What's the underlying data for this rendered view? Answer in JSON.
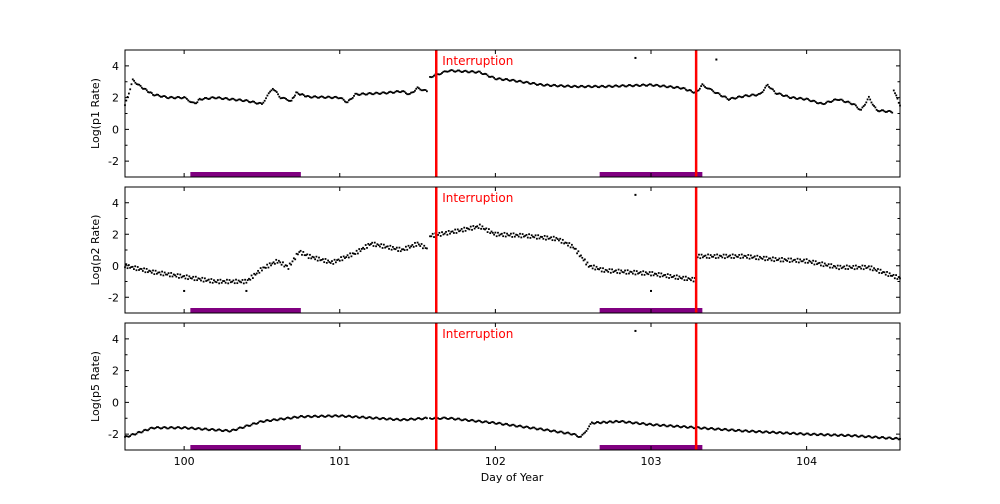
{
  "chart_data": {
    "type": "scatter",
    "xlabel": "Day of Year",
    "xlim": [
      99.62,
      104.6
    ],
    "xticks": [
      100,
      101,
      102,
      103,
      104
    ],
    "colors": {
      "points": "#000000",
      "interruption": "#ff0000",
      "band": "#800080"
    },
    "interruptions": [
      101.62,
      103.29
    ],
    "interruption_label": "Interruption",
    "bands": [
      [
        100.04,
        100.75
      ],
      [
        102.67,
        103.33
      ]
    ],
    "panels": [
      {
        "ylabel": "Log(p1 Rate)",
        "ylim": [
          -3,
          5
        ],
        "yticks": [
          -2,
          0,
          2,
          4
        ],
        "points": [
          [
            99.62,
            1.5
          ],
          [
            99.67,
            3.1
          ],
          [
            99.72,
            2.7
          ],
          [
            99.8,
            2.2
          ],
          [
            99.9,
            2.0
          ],
          [
            100.0,
            2.0
          ],
          [
            100.07,
            1.6
          ],
          [
            100.1,
            1.9
          ],
          [
            100.2,
            2.0
          ],
          [
            100.3,
            1.9
          ],
          [
            100.4,
            1.8
          ],
          [
            100.5,
            1.6
          ],
          [
            100.57,
            2.6
          ],
          [
            100.62,
            2.0
          ],
          [
            100.69,
            1.8
          ],
          [
            100.72,
            2.3
          ],
          [
            100.8,
            2.05
          ],
          [
            101.0,
            2.0
          ],
          [
            101.05,
            1.7
          ],
          [
            101.1,
            2.2
          ],
          [
            101.3,
            2.3
          ],
          [
            101.4,
            2.4
          ],
          [
            101.45,
            2.2
          ],
          [
            101.5,
            2.6
          ],
          [
            101.56,
            2.4
          ]
        ],
        "points_after": [
          [
            101.58,
            3.3
          ],
          [
            101.7,
            3.7
          ],
          [
            101.9,
            3.6
          ],
          [
            102.0,
            3.2
          ],
          [
            102.1,
            3.1
          ],
          [
            102.3,
            2.8
          ],
          [
            102.5,
            2.7
          ],
          [
            102.7,
            2.7
          ],
          [
            103.0,
            2.8
          ],
          [
            103.2,
            2.6
          ],
          [
            103.29,
            2.3
          ],
          [
            103.33,
            2.8
          ],
          [
            103.4,
            2.4
          ],
          [
            103.5,
            1.9
          ],
          [
            103.6,
            2.1
          ],
          [
            103.7,
            2.2
          ],
          [
            103.75,
            2.8
          ],
          [
            103.8,
            2.3
          ],
          [
            103.9,
            2.0
          ],
          [
            104.0,
            1.9
          ],
          [
            104.1,
            1.6
          ],
          [
            104.2,
            1.9
          ],
          [
            104.3,
            1.6
          ],
          [
            104.35,
            1.2
          ],
          [
            104.4,
            2.0
          ],
          [
            104.45,
            1.2
          ],
          [
            104.55,
            1.1
          ],
          [
            104.56,
            2.5
          ],
          [
            104.6,
            1.5
          ]
        ],
        "outliers": [
          [
            102.9,
            4.5
          ],
          [
            103.42,
            4.4
          ]
        ]
      },
      {
        "ylabel": "Log(p2 Rate)",
        "ylim": [
          -3,
          5
        ],
        "yticks": [
          -2,
          0,
          2,
          4
        ],
        "points": [
          [
            99.62,
            0.0
          ],
          [
            99.8,
            -0.4
          ],
          [
            100.0,
            -0.7
          ],
          [
            100.2,
            -1.0
          ],
          [
            100.4,
            -1.0
          ],
          [
            100.5,
            -0.2
          ],
          [
            100.6,
            0.3
          ],
          [
            100.67,
            -0.1
          ],
          [
            100.74,
            0.9
          ],
          [
            100.8,
            0.6
          ],
          [
            100.95,
            0.2
          ],
          [
            101.1,
            0.8
          ],
          [
            101.2,
            1.4
          ],
          [
            101.4,
            1.0
          ],
          [
            101.5,
            1.4
          ],
          [
            101.56,
            1.1
          ]
        ],
        "points_after": [
          [
            101.58,
            1.9
          ],
          [
            101.7,
            2.1
          ],
          [
            101.9,
            2.5
          ],
          [
            102.0,
            2.0
          ],
          [
            102.2,
            1.9
          ],
          [
            102.4,
            1.7
          ],
          [
            102.5,
            1.2
          ],
          [
            102.6,
            0.0
          ],
          [
            102.7,
            -0.3
          ],
          [
            103.0,
            -0.5
          ],
          [
            103.29,
            -0.9
          ],
          [
            103.3,
            0.6
          ],
          [
            103.6,
            0.6
          ],
          [
            103.8,
            0.4
          ],
          [
            104.0,
            0.3
          ],
          [
            104.2,
            -0.1
          ],
          [
            104.4,
            -0.1
          ],
          [
            104.6,
            -0.8
          ]
        ],
        "outliers": [
          [
            102.9,
            4.5
          ],
          [
            100.0,
            -1.6
          ],
          [
            100.4,
            -1.6
          ],
          [
            103.0,
            -1.6
          ]
        ]
      },
      {
        "ylabel": "Log(p5 Rate)",
        "ylim": [
          -3,
          5
        ],
        "yticks": [
          -2,
          0,
          2,
          4
        ],
        "points": [
          [
            99.62,
            -2.2
          ],
          [
            99.8,
            -1.6
          ],
          [
            100.0,
            -1.6
          ],
          [
            100.3,
            -1.8
          ],
          [
            100.5,
            -1.2
          ],
          [
            100.75,
            -0.9
          ],
          [
            101.0,
            -0.85
          ],
          [
            101.4,
            -1.1
          ],
          [
            101.56,
            -1.0
          ]
        ],
        "points_after": [
          [
            101.58,
            -1.0
          ],
          [
            101.7,
            -1.0
          ],
          [
            102.0,
            -1.3
          ],
          [
            102.3,
            -1.7
          ],
          [
            102.5,
            -2.0
          ],
          [
            102.55,
            -2.2
          ],
          [
            102.62,
            -1.3
          ],
          [
            102.8,
            -1.2
          ],
          [
            103.0,
            -1.4
          ],
          [
            103.3,
            -1.6
          ],
          [
            103.6,
            -1.8
          ],
          [
            104.0,
            -2.0
          ],
          [
            104.3,
            -2.1
          ],
          [
            104.6,
            -2.3
          ]
        ],
        "outliers": [
          [
            102.9,
            4.5
          ]
        ]
      }
    ]
  }
}
